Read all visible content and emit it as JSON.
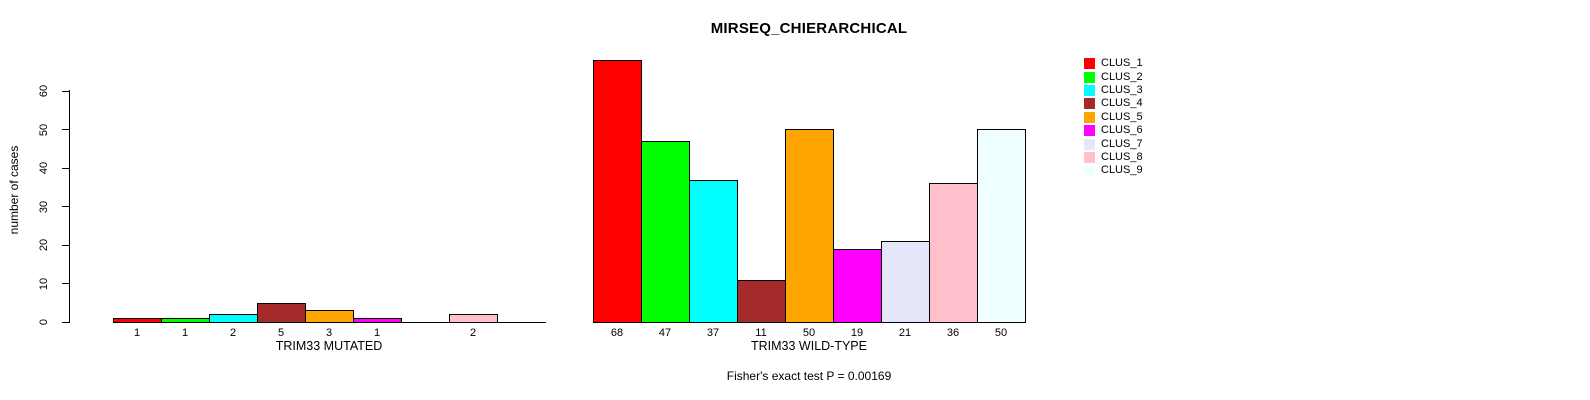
{
  "chart_data": {
    "type": "bar",
    "title": "MIRSEQ_CHIERARCHICAL",
    "ylabel": "number of cases",
    "footnote": "Fisher's exact test P = 0.00169",
    "y_axis": {
      "ticks": [
        0,
        10,
        20,
        30,
        40,
        50,
        60
      ],
      "range": [
        0,
        60
      ],
      "grid": false
    },
    "legend": {
      "position": "right",
      "items": [
        {
          "label": "CLUS_1",
          "color": "#FF0000"
        },
        {
          "label": "CLUS_2",
          "color": "#00FF00"
        },
        {
          "label": "CLUS_3",
          "color": "#00FFFF"
        },
        {
          "label": "CLUS_4",
          "color": "#A52A2A"
        },
        {
          "label": "CLUS_5",
          "color": "#FFA500"
        },
        {
          "label": "CLUS_6",
          "color": "#FF00FF"
        },
        {
          "label": "CLUS_7",
          "color": "#E6E6FA"
        },
        {
          "label": "CLUS_8",
          "color": "#FFC0CB"
        },
        {
          "label": "CLUS_9",
          "color": "#F0FFFF"
        }
      ]
    },
    "panels": [
      {
        "xlabel": "TRIM33 MUTATED",
        "categories": [
          "CLUS_1",
          "CLUS_2",
          "CLUS_3",
          "CLUS_4",
          "CLUS_5",
          "CLUS_6",
          "CLUS_7",
          "CLUS_8",
          "CLUS_9"
        ],
        "values": [
          1,
          1,
          2,
          5,
          3,
          1,
          0,
          2,
          0
        ],
        "bar_labels": [
          "1",
          "1",
          "2",
          "5",
          "3",
          "1",
          "",
          "2",
          ""
        ]
      },
      {
        "xlabel": "TRIM33 WILD-TYPE",
        "categories": [
          "CLUS_1",
          "CLUS_2",
          "CLUS_3",
          "CLUS_4",
          "CLUS_5",
          "CLUS_6",
          "CLUS_7",
          "CLUS_8",
          "CLUS_9"
        ],
        "values": [
          68,
          47,
          37,
          11,
          50,
          19,
          21,
          36,
          50
        ],
        "bar_labels": [
          "68",
          "47",
          "37",
          "11",
          "50",
          "19",
          "21",
          "36",
          "50"
        ]
      }
    ]
  }
}
